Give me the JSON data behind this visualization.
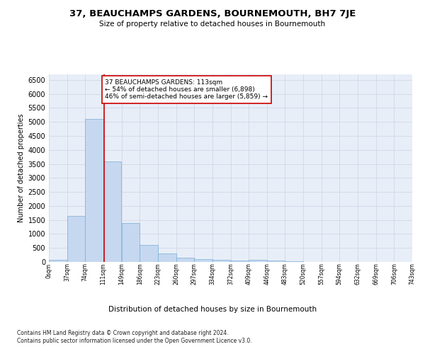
{
  "title": "37, BEAUCHAMPS GARDENS, BOURNEMOUTH, BH7 7JE",
  "subtitle": "Size of property relative to detached houses in Bournemouth",
  "xlabel": "Distribution of detached houses by size in Bournemouth",
  "ylabel": "Number of detached properties",
  "footnote1": "Contains HM Land Registry data © Crown copyright and database right 2024.",
  "footnote2": "Contains public sector information licensed under the Open Government Licence v3.0.",
  "annotation_line1": "37 BEAUCHAMPS GARDENS: 113sqm",
  "annotation_line2": "← 54% of detached houses are smaller (6,898)",
  "annotation_line3": "46% of semi-detached houses are larger (5,859) →",
  "property_size": 113,
  "bin_edges": [
    0,
    37,
    74,
    111,
    149,
    186,
    223,
    260,
    297,
    334,
    372,
    409,
    446,
    483,
    520,
    557,
    594,
    632,
    669,
    706,
    743
  ],
  "bar_heights": [
    75,
    1650,
    5100,
    3600,
    1400,
    600,
    300,
    150,
    100,
    75,
    50,
    75,
    50,
    20,
    10,
    5,
    3,
    2,
    2,
    2
  ],
  "bar_color": "#c5d8f0",
  "bar_edge_color": "#7aadd4",
  "grid_color": "#d0d8e8",
  "vline_color": "#cc0000",
  "annotation_box_edge": "#cc0000",
  "annotation_box_face": "white",
  "ylim": [
    0,
    6700
  ],
  "yticks": [
    0,
    500,
    1000,
    1500,
    2000,
    2500,
    3000,
    3500,
    4000,
    4500,
    5000,
    5500,
    6000,
    6500
  ],
  "background_color": "#e8eef8",
  "title_fontsize": 9.5,
  "subtitle_fontsize": 7.5,
  "ylabel_fontsize": 7,
  "xlabel_fontsize": 7.5,
  "ytick_fontsize": 7,
  "xtick_fontsize": 5.5,
  "footnote_fontsize": 5.5,
  "annotation_fontsize": 6.5
}
